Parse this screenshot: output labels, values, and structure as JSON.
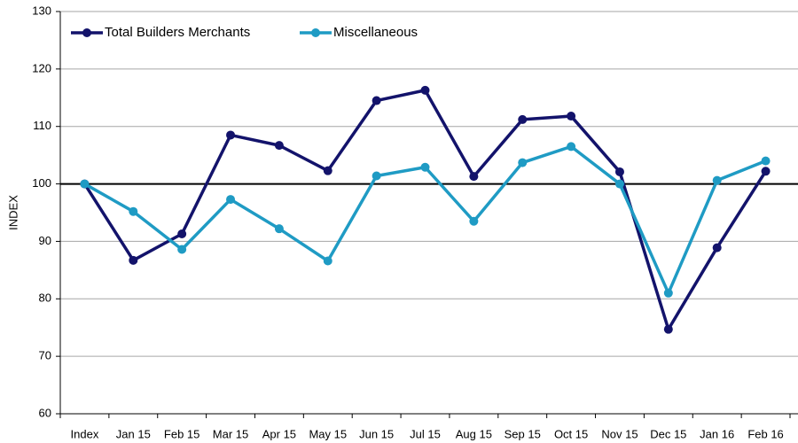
{
  "chart_data": {
    "type": "line",
    "y_label": "INDEX",
    "categories": [
      "Index",
      "Jan 15",
      "Feb 15",
      "Mar 15",
      "Apr 15",
      "May 15",
      "Jun 15",
      "Jul 15",
      "Aug 15",
      "Sep 15",
      "Oct 15",
      "Nov 15",
      "Dec 15",
      "Jan 16",
      "Feb 16"
    ],
    "series": [
      {
        "name": "Total Builders Merchants",
        "color": "#13136b",
        "values": [
          100,
          86.7,
          91.3,
          108.5,
          106.7,
          102.3,
          114.5,
          116.3,
          101.3,
          111.2,
          111.8,
          102.1,
          74.7,
          88.9,
          102.2
        ]
      },
      {
        "name": "Miscellaneous",
        "color": "#1f9bc4",
        "values": [
          100,
          95.2,
          88.6,
          97.3,
          92.2,
          86.6,
          101.4,
          102.9,
          93.5,
          103.7,
          106.5,
          100,
          81,
          100.6,
          104
        ]
      }
    ],
    "ylim": [
      60,
      130
    ],
    "yticks": [
      60,
      70,
      80,
      90,
      100,
      110,
      120,
      130
    ],
    "reference_line": 100,
    "grid": true,
    "legend": "top-left"
  }
}
